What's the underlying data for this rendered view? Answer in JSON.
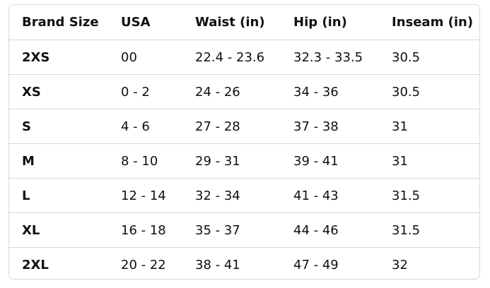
{
  "table": {
    "header": [
      "Brand Size",
      "USA",
      "Waist (in)",
      "Hip (in)",
      "Inseam (in)"
    ],
    "rows": [
      [
        "2XS",
        "00",
        "22.4 - 23.6",
        "32.3 - 33.5",
        "30.5"
      ],
      [
        "XS",
        "0 - 2",
        "24 - 26",
        "34 - 36",
        "30.5"
      ],
      [
        "S",
        "4 - 6",
        "27 - 28",
        "37 - 38",
        "31"
      ],
      [
        "M",
        "8 - 10",
        "29 - 31",
        "39 - 41",
        "31"
      ],
      [
        "L",
        "12 - 14",
        "32 - 34",
        "41 - 43",
        "31.5"
      ],
      [
        "XL",
        "16 - 18",
        "35 - 37",
        "44 - 46",
        "31.5"
      ],
      [
        "2XL",
        "20 - 22",
        "38 - 41",
        "47 - 49",
        "32"
      ]
    ]
  }
}
